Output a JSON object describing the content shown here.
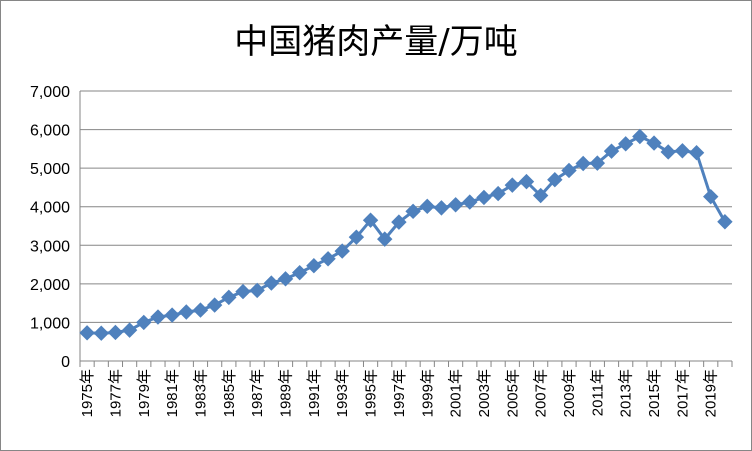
{
  "chart_data": {
    "type": "line",
    "title": "中国猪肉产量/万吨",
    "xlabel": "",
    "ylabel": "",
    "ylim": [
      0,
      7000
    ],
    "ytick_labels": [
      "0",
      "1,000",
      "2,000",
      "3,000",
      "4,000",
      "5,000",
      "6,000",
      "7,000"
    ],
    "categories": [
      "1975年",
      "1976年",
      "1977年",
      "1978年",
      "1979年",
      "1980年",
      "1981年",
      "1982年",
      "1983年",
      "1984年",
      "1985年",
      "1986年",
      "1987年",
      "1988年",
      "1989年",
      "1990年",
      "1991年",
      "1992年",
      "1993年",
      "1994年",
      "1995年",
      "1996年",
      "1997年",
      "1998年",
      "1999年",
      "2000年",
      "2001年",
      "2002年",
      "2003年",
      "2004年",
      "2005年",
      "2006年",
      "2007年",
      "2008年",
      "2009年",
      "2010年",
      "2011年",
      "2012年",
      "2013年",
      "2014年",
      "2015年",
      "2016年",
      "2017年",
      "2018年",
      "2019年",
      "2020年"
    ],
    "xtick_labels": [
      "1975年",
      "1977年",
      "1979年",
      "1981年",
      "1983年",
      "1985年",
      "1987年",
      "1989年",
      "1991年",
      "1993年",
      "1995年",
      "1997年",
      "1999年",
      "2001年",
      "2003年",
      "2005年",
      "2007年",
      "2009年",
      "2011年",
      "2013年",
      "2015年",
      "2017年",
      "2019年"
    ],
    "series": [
      {
        "values": [
          730,
          720,
          740,
          800,
          1000,
          1140,
          1190,
          1270,
          1320,
          1450,
          1650,
          1800,
          1830,
          2020,
          2130,
          2290,
          2470,
          2650,
          2850,
          3210,
          3650,
          3160,
          3600,
          3880,
          4010,
          3970,
          4050,
          4120,
          4240,
          4340,
          4560,
          4650,
          4290,
          4700,
          4940,
          5120,
          5130,
          5440,
          5630,
          5820,
          5650,
          5420,
          5450,
          5400,
          4260,
          3610
        ]
      }
    ],
    "colors": {
      "series": "#4F81BD",
      "grid": "#868686",
      "axis": "#868686"
    },
    "grid": true,
    "legend": "none"
  }
}
